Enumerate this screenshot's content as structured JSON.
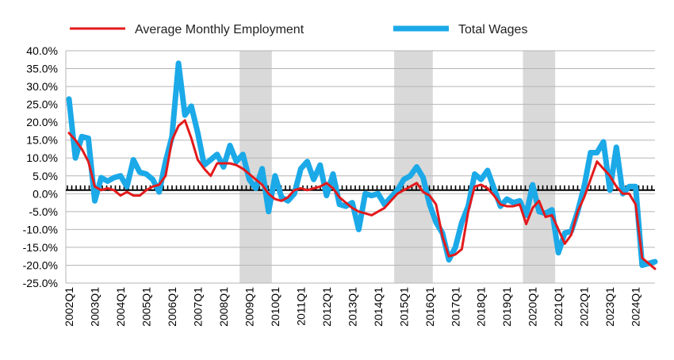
{
  "chart_data": {
    "type": "line",
    "title": "",
    "xlabel": "",
    "ylabel": "",
    "ylim": [
      -25,
      40
    ],
    "y_ticks": [
      "40.0%",
      "35.0%",
      "30.0%",
      "25.0%",
      "20.0%",
      "15.0%",
      "10.0%",
      "5.0%",
      "0.0%",
      "-5.0%",
      "-10.0%",
      "-15.0%",
      "-20.0%",
      "-25.0%"
    ],
    "x_start": "2002Q1",
    "x_tick_labels": [
      "2002Q1",
      "2003Q1",
      "2004Q1",
      "2005Q1",
      "2006Q1",
      "2007Q1",
      "2008Q1",
      "2009Q1",
      "2010Q1",
      "2011Q1",
      "2012Q1",
      "2013Q1",
      "2014Q1",
      "2015Q1",
      "2016Q1",
      "2017Q1",
      "2018Q1",
      "2019Q1",
      "2020Q1",
      "2021Q1",
      "2022Q1",
      "2023Q1",
      "2024Q1"
    ],
    "grid": "horizontal",
    "reference_line": {
      "y": 1,
      "style": "dotted"
    },
    "legend_position": "top",
    "shaded_periods": [
      {
        "start": "2008Q4",
        "end": "2009Q4"
      },
      {
        "start": "2014Q4",
        "end": "2016Q1"
      },
      {
        "start": "2019Q4",
        "end": "2020Q4"
      }
    ],
    "series": [
      {
        "name": "Average Monthly Employment",
        "color": "#e31a1c",
        "values": [
          17,
          15,
          12.5,
          9,
          2,
          1,
          1.5,
          1,
          -0.5,
          0.5,
          -0.5,
          -0.5,
          1,
          2,
          2.5,
          5,
          15,
          19,
          20.5,
          15.5,
          9.5,
          7,
          5,
          8.5,
          8.5,
          8.5,
          8,
          7,
          5.5,
          4,
          2.5,
          0,
          -1.5,
          -2,
          -1,
          1,
          1.5,
          1,
          1.5,
          2,
          3,
          1.5,
          -1,
          -2.5,
          -4,
          -5,
          -5.5,
          -6,
          -5,
          -4,
          -2,
          0,
          1,
          2,
          3,
          0.5,
          -0.5,
          -3,
          -12,
          -17.5,
          -17,
          -15.5,
          -5,
          2,
          2.5,
          1.5,
          -0.5,
          -3,
          -3.5,
          -3.5,
          -3,
          -8.5,
          -4,
          -2,
          -6.5,
          -6,
          -10,
          -14,
          -11.5,
          -5,
          -1,
          4,
          9,
          7,
          5,
          2,
          0,
          0,
          -3,
          -18,
          -19.5,
          -21
        ]
      },
      {
        "name": "Total Wages",
        "color": "#1ba9e8",
        "values": [
          26.5,
          10,
          16,
          15.5,
          -2,
          4.5,
          3.5,
          4.5,
          5,
          2,
          9.5,
          6,
          5.5,
          4,
          0.5,
          9,
          16,
          36.5,
          22,
          24.5,
          17,
          8,
          9.5,
          11,
          7.5,
          13.5,
          9,
          11,
          4,
          1.5,
          7,
          -5,
          5,
          -1,
          -2,
          0,
          7,
          9,
          4,
          8,
          -0.5,
          5.5,
          -3,
          -3.5,
          -2.5,
          -10,
          0,
          -0.5,
          0,
          -3,
          -1,
          1,
          4,
          5,
          7.5,
          4.5,
          -3,
          -8,
          -11,
          -18.5,
          -15,
          -8,
          -3.5,
          5.5,
          4,
          6.5,
          1.5,
          -3.5,
          -1.5,
          -2.5,
          -2,
          -6,
          2.5,
          -5,
          -5.5,
          -4.5,
          -16.5,
          -11,
          -10.5,
          -5,
          2,
          11.5,
          11.5,
          14.5,
          1,
          13,
          0,
          2,
          2,
          -20,
          -19.5,
          -19
        ]
      }
    ]
  }
}
